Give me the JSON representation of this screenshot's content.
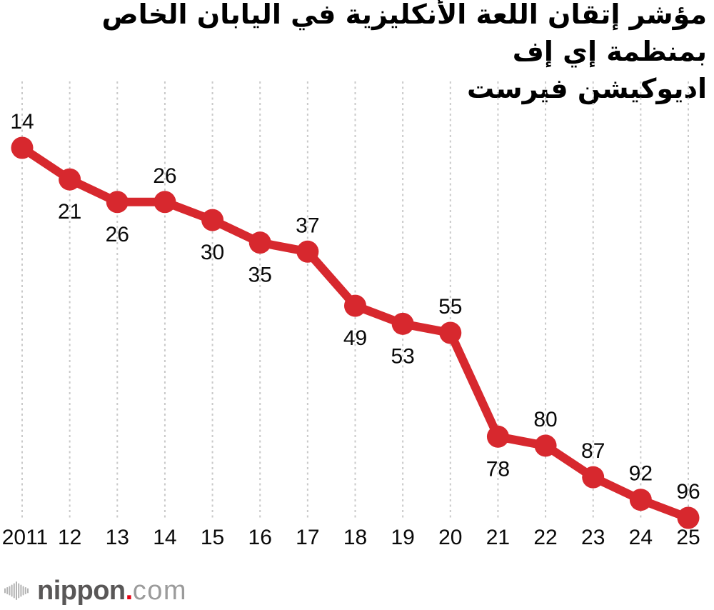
{
  "title": {
    "line1": "مؤشر إتقان اللعة الأنكليزية في اليابان الخاص بمنظمة إي إف",
    "line2": "اديوكيشن فيرست"
  },
  "chart_data": {
    "type": "line",
    "title": "مؤشر إتقان اللعة الأنكليزية في اليابان الخاص بمنظمة إي إف اديوكيشن فيرست",
    "categories": [
      "2011",
      "12",
      "13",
      "14",
      "15",
      "16",
      "17",
      "18",
      "19",
      "20",
      "21",
      "22",
      "23",
      "24",
      "25"
    ],
    "values": [
      14,
      21,
      26,
      26,
      30,
      35,
      37,
      49,
      53,
      55,
      78,
      80,
      87,
      92,
      96
    ],
    "label_positions": [
      "above",
      "below",
      "below",
      "above",
      "below",
      "below",
      "above",
      "below",
      "below",
      "above",
      "below",
      "above",
      "above",
      "above",
      "above"
    ],
    "xlabel": "",
    "ylabel": "",
    "ylim": [
      14,
      96
    ],
    "y_axis_inverted_rank": true,
    "grid": "vertical-dashed",
    "legend": "none",
    "marker": "circle"
  },
  "footer": {
    "logo": {
      "name": "nippon",
      "dot": ".",
      "tld": "com"
    }
  },
  "colors": {
    "line": "#d7282e",
    "grid": "#c9c9c9",
    "label": "#0a0a0a",
    "title": "#000000",
    "logo_dark": "#595757",
    "logo_light": "#9b9b9b",
    "logo_icon": "#b3b3b3",
    "logo_dot": "#e60012",
    "background": "#ffffff"
  }
}
